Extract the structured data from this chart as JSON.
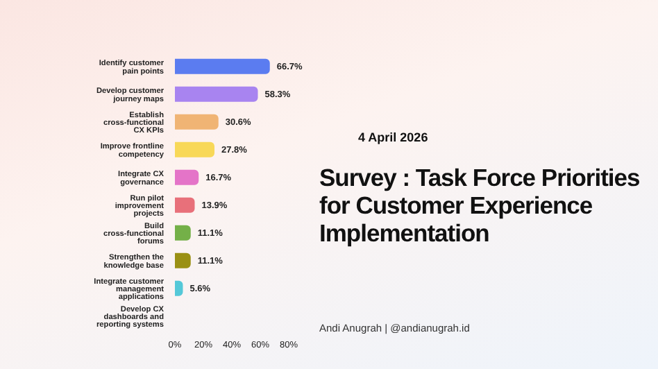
{
  "chart_data": {
    "type": "bar",
    "orientation": "horizontal",
    "title": "Survey : Task Force Priorities for Customer Experience Implementation",
    "subtitle": "4 April 2026",
    "annotations": [
      "Andi Anugrah | @andianugrah.id"
    ],
    "categories": [
      "Identify customer pain points",
      "Develop customer journey maps",
      "Establish cross-functional CX KPIs",
      "Improve frontline competency",
      "Integrate CX governance",
      "Run pilot improvement projects",
      "Build cross-functional forums",
      "Strengthen the knowledge base",
      "Integrate customer management applications",
      "Develop CX dashboards and reporting systems"
    ],
    "values": [
      66.7,
      58.3,
      30.6,
      27.8,
      16.7,
      13.9,
      11.1,
      11.1,
      5.6,
      0
    ],
    "value_labels": [
      "66.7%",
      "58.3%",
      "30.6%",
      "27.8%",
      "16.7%",
      "13.9%",
      "11.1%",
      "11.1%",
      "5.6%",
      null
    ],
    "colors": [
      "#5b7cf0",
      "#a884f0",
      "#f0b474",
      "#f8d858",
      "#e474c8",
      "#e8707a",
      "#74b048",
      "#9a9014",
      "#54c8d8",
      "#9a9a9a"
    ],
    "xlim": [
      0,
      80
    ],
    "xticks": [
      {
        "value": 0,
        "label": "0%"
      },
      {
        "value": 20,
        "label": "20%"
      },
      {
        "value": 40,
        "label": "40%"
      },
      {
        "value": 60,
        "label": "60%"
      },
      {
        "value": 80,
        "label": "80%"
      }
    ],
    "grid": false,
    "legend": false
  }
}
